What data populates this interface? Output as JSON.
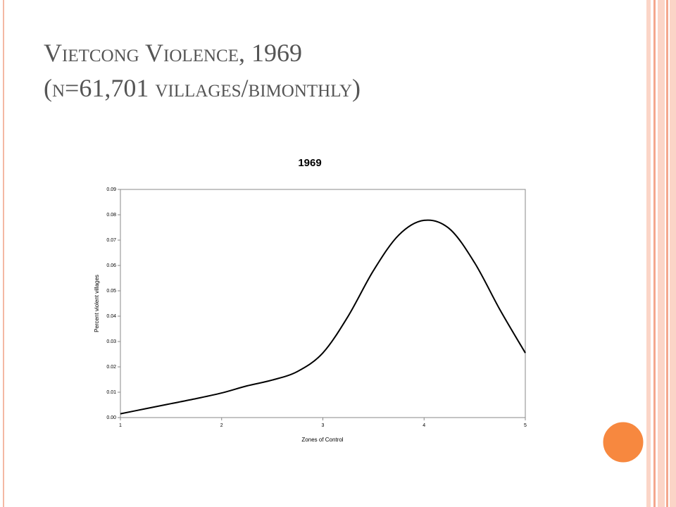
{
  "header": {
    "title": "Vietcong Violence, 1969",
    "subtitle": "(n=61,701 villages/bimonthly)"
  },
  "chart_data": {
    "type": "line",
    "title": "1969",
    "x_label": "Zones of Control",
    "y_label": "Percent violent villages",
    "x": [
      1,
      1.25,
      1.5,
      1.75,
      2,
      2.25,
      2.5,
      2.75,
      3,
      3.25,
      3.5,
      3.75,
      4,
      4.25,
      4.5,
      4.75,
      5
    ],
    "values": [
      0.0015,
      0.0035,
      0.0055,
      0.0075,
      0.0097,
      0.0125,
      0.0148,
      0.0182,
      0.0255,
      0.04,
      0.058,
      0.072,
      0.0778,
      0.0745,
      0.061,
      0.0425,
      0.0255
    ],
    "color": "#000000",
    "xlim": [
      1,
      5
    ],
    "xticks": [
      1,
      2,
      3,
      4,
      5
    ],
    "ylim": [
      0,
      0.09
    ],
    "yticks": [
      {
        "value": 0,
        "label": "0.00"
      },
      0.01,
      0.02,
      0.03,
      0.04,
      0.05,
      0.06,
      0.07,
      0.08,
      0.09
    ],
    "grid": false
  }
}
